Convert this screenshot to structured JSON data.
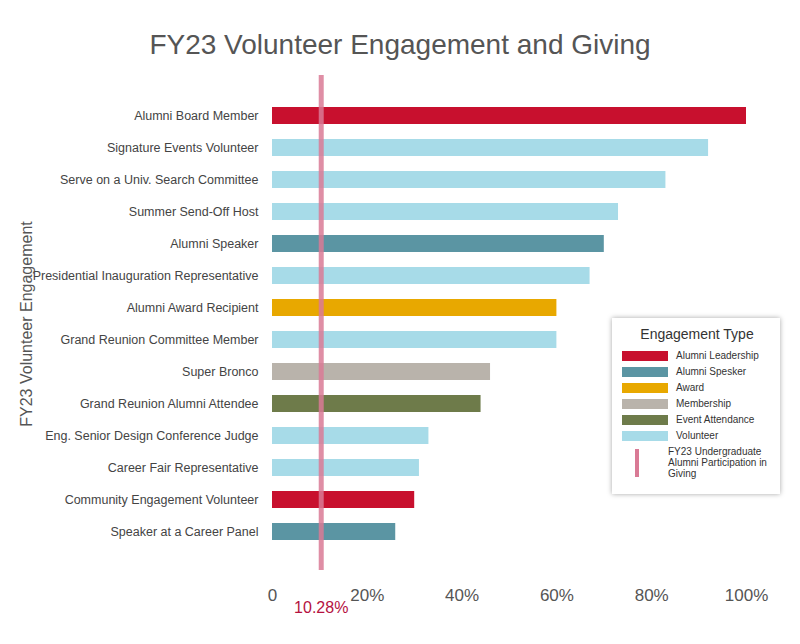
{
  "chart_data": {
    "type": "bar",
    "title": "FY23 Volunteer Engagement and Giving",
    "orientation": "horizontal",
    "ylabel": "FY23 Volunteer Engagement",
    "categories": [
      "Alumni Board Member",
      "Signature Events Volunteer",
      "Serve on a Univ. Search Committee",
      "Summer Send-Off Host",
      "Alumni Speaker",
      "Presidential Inauguration Representative",
      "Alumni Award Recipient",
      "Grand Reunion Committee Member",
      "Super Bronco",
      "Grand Reunion Alumni Attendee",
      "Eng. Senior Design Conference Judge",
      "Career Fair Representative",
      "Community Engagement Volunteer",
      "Speaker at a Career Panel"
    ],
    "values": [
      100,
      92,
      83,
      73,
      70,
      67,
      60,
      60,
      46,
      44,
      33,
      31,
      30,
      26
    ],
    "bar_groups": [
      "Alumni Leadership",
      "Volunteer",
      "Volunteer",
      "Volunteer",
      "Alumni Spesker",
      "Volunteer",
      "Award",
      "Volunteer",
      "Membership",
      "Event Attendance",
      "Volunteer",
      "Volunteer",
      "Alumni Leadership",
      "Alumni Spesker"
    ],
    "legend_title": "Engagement Type",
    "legend": "bottom-right",
    "groups": [
      {
        "name": "Alumni Leadership",
        "color": "#c8102e"
      },
      {
        "name": "Alumni Spesker",
        "color": "#5b95a3"
      },
      {
        "name": "Award",
        "color": "#e8a800"
      },
      {
        "name": "Membership",
        "color": "#b9b3ab"
      },
      {
        "name": "Event Attendance",
        "color": "#6e7b4a"
      },
      {
        "name": "Volunteer",
        "color": "#a7dbe8"
      }
    ],
    "reference_line": {
      "value": 10.28,
      "label": "10.28%",
      "name": "FY23 Undergraduate Alumni Participation in Giving",
      "color": "#d97a95"
    },
    "xlim": [
      0,
      100
    ],
    "xticks": [
      0,
      {
        "value": 20,
        "label": "20%"
      },
      {
        "value": 40,
        "label": "40%"
      },
      {
        "value": 60,
        "label": "60%"
      },
      {
        "value": 80,
        "label": "80%"
      },
      {
        "value": 100,
        "label": "100%"
      }
    ],
    "grid": false
  }
}
